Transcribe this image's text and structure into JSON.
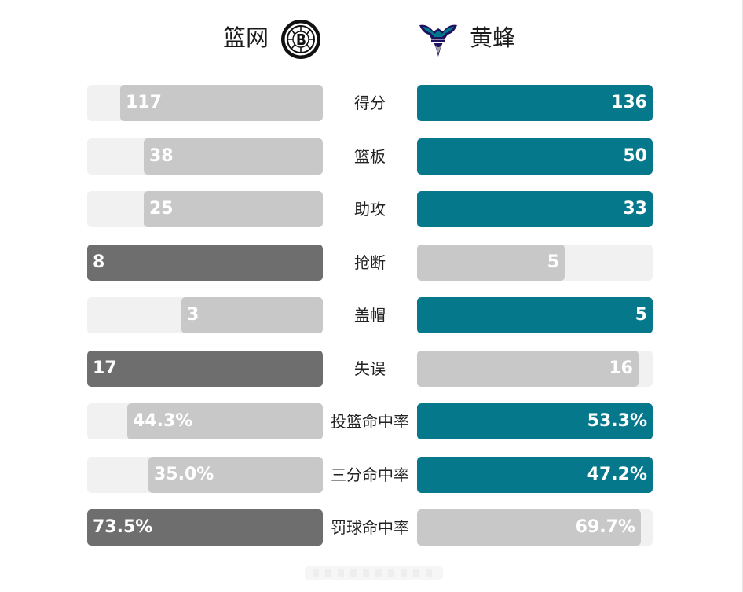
{
  "teams": {
    "left": {
      "name": "篮网",
      "logo_icon": "brooklyn-nets-logo-icon"
    },
    "right": {
      "name": "黄蜂",
      "logo_icon": "charlotte-hornets-logo-icon"
    }
  },
  "colors": {
    "left_leader": "#6e6e6e",
    "right_leader": "#05798b",
    "trailing": "#c8c8c8",
    "track": "#f1f1f1"
  },
  "chart_data": {
    "type": "bar",
    "categories": [
      "得分",
      "篮板",
      "助攻",
      "抢断",
      "盖帽",
      "失误",
      "投篮命中率",
      "三分命中率",
      "罚球命中率"
    ],
    "series": [
      {
        "name": "篮网",
        "values": [
          117,
          38,
          25,
          8,
          3,
          17,
          44.3,
          35.0,
          73.5
        ]
      },
      {
        "name": "黄蜂",
        "values": [
          136,
          50,
          33,
          5,
          5,
          16,
          53.3,
          47.2,
          69.7
        ]
      }
    ]
  },
  "stats": [
    {
      "label": "得分",
      "left": "117",
      "right": "136",
      "left_fill": 0.86,
      "right_fill": 1.0,
      "leader": "right"
    },
    {
      "label": "篮板",
      "left": "38",
      "right": "50",
      "left_fill": 0.76,
      "right_fill": 1.0,
      "leader": "right"
    },
    {
      "label": "助攻",
      "left": "25",
      "right": "33",
      "left_fill": 0.76,
      "right_fill": 1.0,
      "leader": "right"
    },
    {
      "label": "抢断",
      "left": "8",
      "right": "5",
      "left_fill": 1.0,
      "right_fill": 0.625,
      "leader": "left"
    },
    {
      "label": "盖帽",
      "left": "3",
      "right": "5",
      "left_fill": 0.6,
      "right_fill": 1.0,
      "leader": "right"
    },
    {
      "label": "失误",
      "left": "17",
      "right": "16",
      "left_fill": 1.0,
      "right_fill": 0.94,
      "leader": "left"
    },
    {
      "label": "投篮命中率",
      "left": "44.3%",
      "right": "53.3%",
      "left_fill": 0.83,
      "right_fill": 1.0,
      "leader": "right"
    },
    {
      "label": "三分命中率",
      "left": "35.0%",
      "right": "47.2%",
      "left_fill": 0.74,
      "right_fill": 1.0,
      "leader": "right"
    },
    {
      "label": "罚球命中率",
      "left": "73.5%",
      "right": "69.7%",
      "left_fill": 1.0,
      "right_fill": 0.95,
      "leader": "left"
    }
  ]
}
